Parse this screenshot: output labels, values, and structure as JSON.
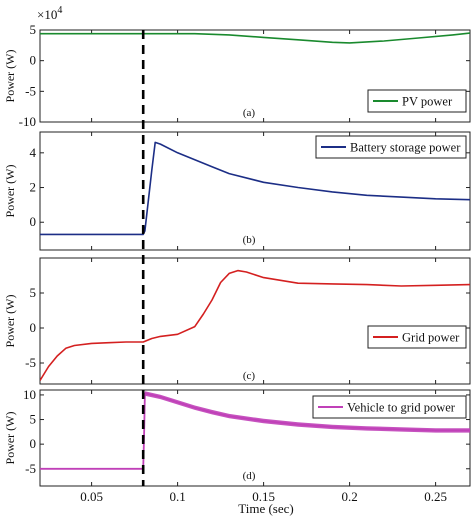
{
  "figure": {
    "xlabel": "Time (sec)",
    "exponent_label": "×10",
    "exponent_power": "4",
    "event_time": 0.08
  },
  "chart_data": [
    {
      "id": "a",
      "type": "line",
      "panel_label": "(a)",
      "ylabel": "Power (W)",
      "xlim": [
        0.02,
        0.27
      ],
      "ylim": [
        -10,
        5
      ],
      "yticks": [
        "5",
        "0",
        "-5",
        "-10"
      ],
      "ytick_values": [
        5,
        0,
        -5,
        -10
      ],
      "legend_position": "right",
      "series": [
        {
          "name": "PV power",
          "color": "#1a8a2e",
          "x": [
            0.02,
            0.05,
            0.08,
            0.11,
            0.13,
            0.15,
            0.17,
            0.19,
            0.2,
            0.22,
            0.24,
            0.26,
            0.27
          ],
          "y": [
            4.4,
            4.4,
            4.4,
            4.4,
            4.2,
            3.8,
            3.4,
            3.0,
            2.9,
            3.2,
            3.7,
            4.2,
            4.5
          ]
        }
      ]
    },
    {
      "id": "b",
      "type": "line",
      "panel_label": "(b)",
      "ylabel": "Power (W)",
      "xlim": [
        0.02,
        0.27
      ],
      "ylim": [
        -1.6,
        5.2
      ],
      "yticks": [
        "4",
        "2",
        "0"
      ],
      "ytick_values": [
        4,
        2,
        0
      ],
      "legend_position": "top-right",
      "series": [
        {
          "name": "Battery storage power",
          "color": "#1c2e86",
          "x": [
            0.02,
            0.05,
            0.08,
            0.081,
            0.085,
            0.087,
            0.09,
            0.1,
            0.11,
            0.12,
            0.13,
            0.15,
            0.17,
            0.19,
            0.21,
            0.23,
            0.25,
            0.27
          ],
          "y": [
            -0.7,
            -0.7,
            -0.7,
            -0.5,
            3.0,
            4.6,
            4.5,
            4.0,
            3.6,
            3.2,
            2.8,
            2.3,
            2.0,
            1.75,
            1.55,
            1.45,
            1.35,
            1.3
          ]
        }
      ]
    },
    {
      "id": "c",
      "type": "line",
      "panel_label": "(c)",
      "ylabel": "Power (W)",
      "xlim": [
        0.02,
        0.27
      ],
      "ylim": [
        -8,
        10
      ],
      "yticks": [
        "5",
        "0",
        "-5"
      ],
      "ytick_values": [
        5,
        0,
        -5
      ],
      "legend_position": "right",
      "series": [
        {
          "name": "Grid power",
          "color": "#d42020",
          "x": [
            0.02,
            0.025,
            0.03,
            0.035,
            0.04,
            0.05,
            0.06,
            0.07,
            0.08,
            0.085,
            0.09,
            0.1,
            0.11,
            0.115,
            0.12,
            0.125,
            0.13,
            0.135,
            0.14,
            0.15,
            0.17,
            0.19,
            0.21,
            0.23,
            0.25,
            0.27
          ],
          "y": [
            -7.5,
            -5.5,
            -4.0,
            -2.9,
            -2.5,
            -2.2,
            -2.1,
            -2.0,
            -2.0,
            -1.5,
            -1.2,
            -0.9,
            0.2,
            2.0,
            4.0,
            6.5,
            7.8,
            8.2,
            8.0,
            7.2,
            6.4,
            6.3,
            6.2,
            6.0,
            6.1,
            6.2
          ]
        }
      ]
    },
    {
      "id": "d",
      "type": "line",
      "panel_label": "(d)",
      "ylabel": "Power (W)",
      "xlim": [
        0.02,
        0.27
      ],
      "ylim": [
        -8.5,
        11
      ],
      "yticks": [
        "10",
        "5",
        "0",
        "-5"
      ],
      "ytick_values": [
        10,
        5,
        0,
        -5
      ],
      "xticks": [
        "0.05",
        "0.1",
        "0.15",
        "0.2",
        "0.25"
      ],
      "xtick_values": [
        0.05,
        0.1,
        0.15,
        0.2,
        0.25
      ],
      "legend_position": "top-right",
      "series": [
        {
          "name": "Vehicle to grid power",
          "color": "#c040b8",
          "x": [
            0.02,
            0.05,
            0.08,
            0.0805,
            0.081,
            0.09,
            0.1,
            0.11,
            0.12,
            0.13,
            0.15,
            0.17,
            0.19,
            0.21,
            0.23,
            0.25,
            0.27
          ],
          "y": [
            -5,
            -5,
            -5,
            2.0,
            10.3,
            9.6,
            8.5,
            7.4,
            6.5,
            5.7,
            4.7,
            4.0,
            3.5,
            3.2,
            3.0,
            2.8,
            2.8
          ]
        }
      ]
    }
  ]
}
